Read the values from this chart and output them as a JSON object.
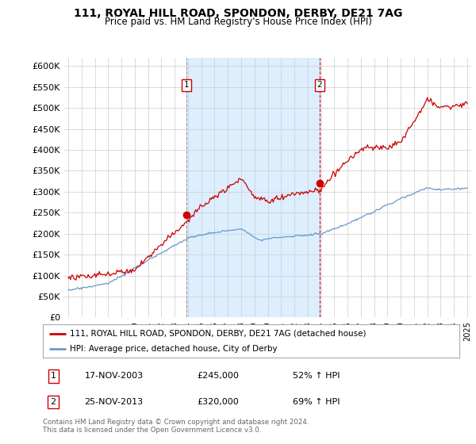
{
  "title": "111, ROYAL HILL ROAD, SPONDON, DERBY, DE21 7AG",
  "subtitle": "Price paid vs. HM Land Registry's House Price Index (HPI)",
  "ylabel_ticks": [
    "£0",
    "£50K",
    "£100K",
    "£150K",
    "£200K",
    "£250K",
    "£300K",
    "£350K",
    "£400K",
    "£450K",
    "£500K",
    "£550K",
    "£600K"
  ],
  "ytick_values": [
    0,
    50000,
    100000,
    150000,
    200000,
    250000,
    300000,
    350000,
    400000,
    450000,
    500000,
    550000,
    600000
  ],
  "ylim": [
    0,
    620000
  ],
  "hpi_color": "#6699cc",
  "price_color": "#cc0000",
  "shade_color": "#ddeeff",
  "marker1_date": 2003.88,
  "marker1_price": 245000,
  "marker1_label": "1",
  "marker2_date": 2013.9,
  "marker2_price": 320000,
  "marker2_label": "2",
  "legend_line1": "111, ROYAL HILL ROAD, SPONDON, DERBY, DE21 7AG (detached house)",
  "legend_line2": "HPI: Average price, detached house, City of Derby",
  "table_row1": [
    "1",
    "17-NOV-2003",
    "£245,000",
    "52% ↑ HPI"
  ],
  "table_row2": [
    "2",
    "25-NOV-2013",
    "£320,000",
    "69% ↑ HPI"
  ],
  "footer": "Contains HM Land Registry data © Crown copyright and database right 2024.\nThis data is licensed under the Open Government Licence v3.0.",
  "background_color": "#ffffff",
  "grid_color": "#cccccc",
  "xlim_left": 1994.7,
  "xlim_right": 2025.3
}
